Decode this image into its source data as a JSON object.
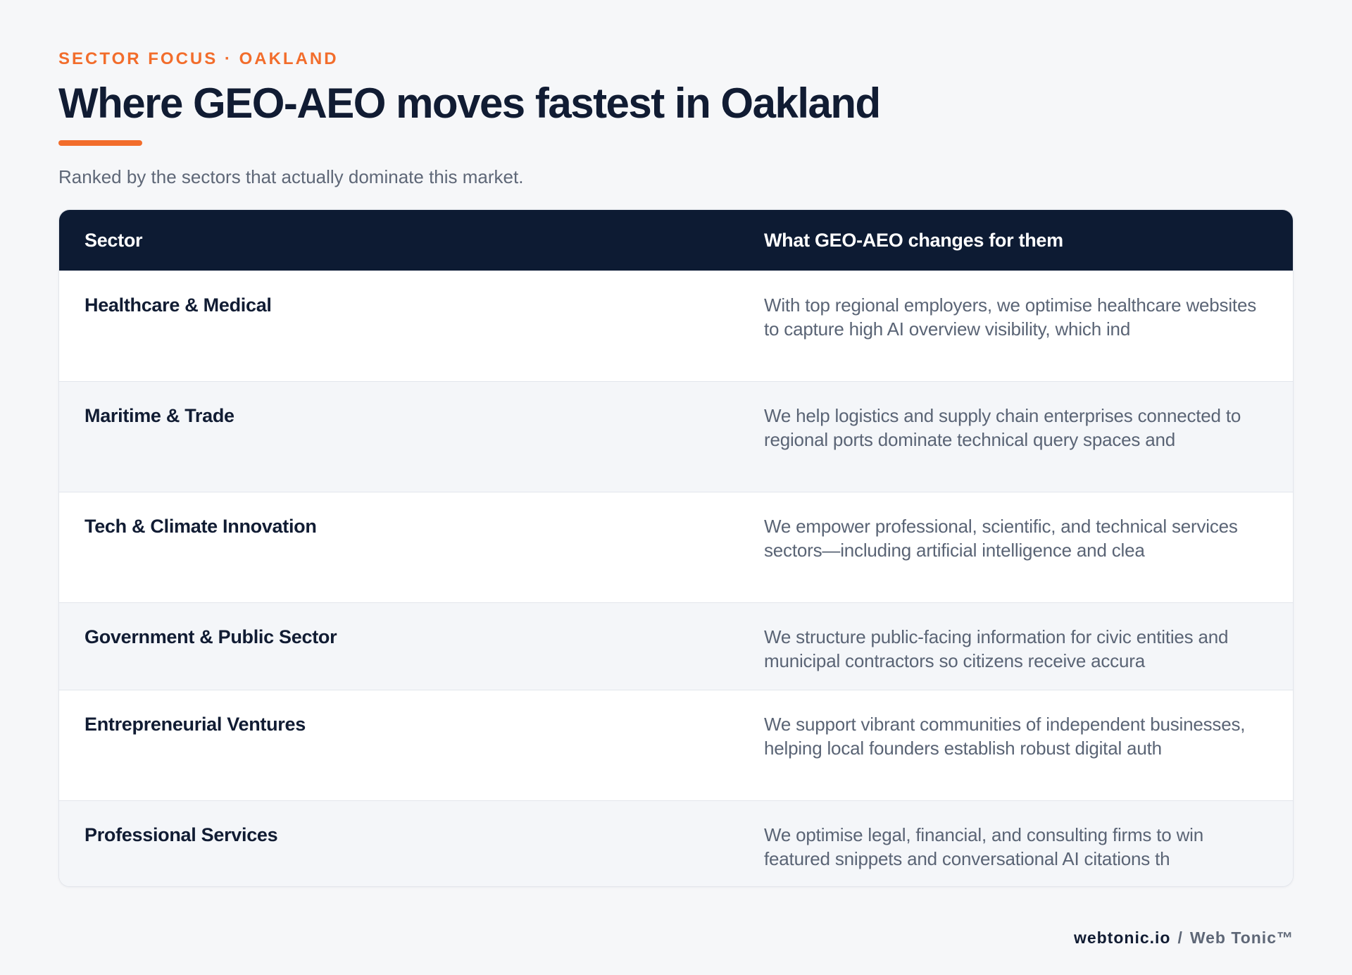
{
  "header": {
    "eyebrow": "SECTOR FOCUS · OAKLAND",
    "title": "Where GEO-AEO moves fastest in Oakland",
    "subtitle": "Ranked by the sectors that actually dominate this market."
  },
  "table": {
    "columns": [
      "Sector",
      "What GEO-AEO changes for them"
    ],
    "rows": [
      {
        "sector": "Healthcare & Medical",
        "change": "With top regional employers, we optimise healthcare websites to capture high AI overview visibility, which ind"
      },
      {
        "sector": "Maritime & Trade",
        "change": "We help logistics and supply chain enterprises connected to regional ports dominate technical query spaces and"
      },
      {
        "sector": "Tech & Climate Innovation",
        "change": "We empower professional, scientific, and technical services sectors—including artificial intelligence and clea"
      },
      {
        "sector": "Government & Public Sector",
        "change": "We structure public-facing information for civic entities and municipal contractors so citizens receive accura"
      },
      {
        "sector": "Entrepreneurial Ventures",
        "change": "We support vibrant communities of independent businesses, helping local founders establish robust digital auth"
      },
      {
        "sector": "Professional Services",
        "change": "We optimise legal, financial, and consulting firms to win featured snippets and conversational AI citations th"
      }
    ]
  },
  "footer": {
    "domain": "webtonic.io",
    "separator": "/",
    "brand": "Web Tonic™"
  },
  "colors": {
    "accent": "#f26d2c",
    "navy": "#0d1b33",
    "background": "#f6f7f9"
  }
}
